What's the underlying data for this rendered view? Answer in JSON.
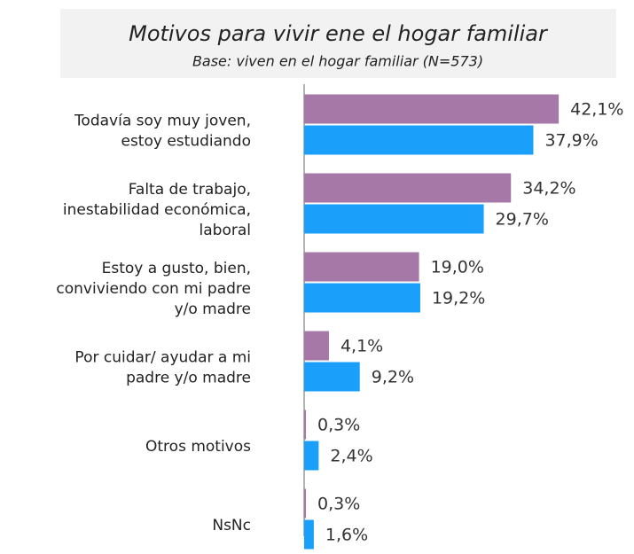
{
  "chart_data": {
    "type": "hbar",
    "title": "Motivos para vivir ene el hogar familiar",
    "subtitle": "Base: viven en el hogar familiar (N=573)",
    "categories": [
      "Todavía soy muy joven,\nestoy estudiando",
      "Falta de trabajo,\ninestabilidad económica,\nlaboral",
      "Estoy a gusto, bien,\nconviviendo con mi padre\ny/o madre",
      "Por cuidar/ ayudar a mi\npadre y/o madre",
      "Otros motivos",
      "NsNc"
    ],
    "series": [
      {
        "color": "#a678a8",
        "values": [
          42.1,
          34.2,
          19.0,
          4.1,
          0.3,
          0.3
        ],
        "value_labels": [
          "42,1%",
          "34,2%",
          "19,0%",
          "4,1%",
          "0,3%",
          "0,3%"
        ]
      },
      {
        "color": "#1a9ffa",
        "values": [
          37.9,
          29.7,
          19.2,
          9.2,
          2.4,
          1.6
        ],
        "value_labels": [
          "37,9%",
          "29,7%",
          "19,2%",
          "9,2%",
          "2,4%",
          "1,6%"
        ]
      }
    ],
    "xlim": [
      0,
      50
    ]
  }
}
